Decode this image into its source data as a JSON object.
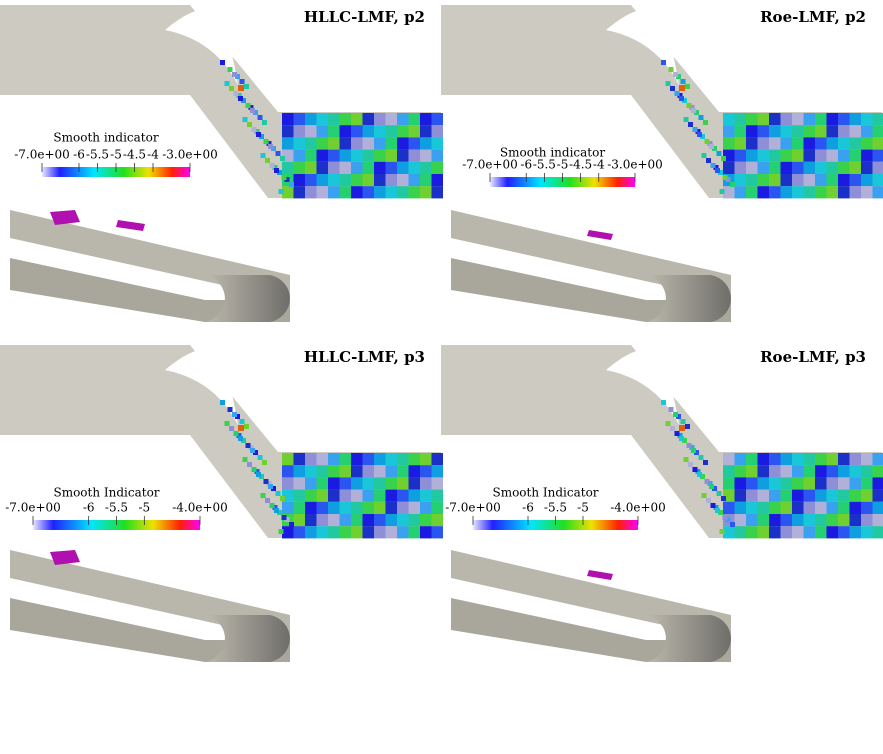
{
  "panels": [
    {
      "title": "HLLC-LMF, p2",
      "colorbar": {
        "label": "Smooth indicator",
        "ticks": [
          {
            "value": -7,
            "label": "-7.0e+00"
          },
          -6,
          -5.5,
          -5,
          -4.5,
          -4,
          {
            "value": -3,
            "label": "-3.0e+00"
          }
        ]
      }
    },
    {
      "title": "Roe-LMF, p2",
      "colorbar": {
        "label": "Smooth indicator",
        "ticks": [
          {
            "value": -7,
            "label": "-7.0e+00"
          },
          -6,
          -5.5,
          -5,
          -4.5,
          -4,
          {
            "value": -3,
            "label": "-3.0e+00"
          }
        ]
      }
    },
    {
      "title": "HLLC-LMF, p3",
      "colorbar": {
        "label": "Smooth Indicator",
        "ticks": [
          {
            "value": -7,
            "label": "-7.0e+00"
          },
          -6,
          -5.5,
          -5,
          {
            "value": -4,
            "label": "-4.0e+00"
          }
        ]
      }
    },
    {
      "title": "Roe-LMF, p3",
      "colorbar": {
        "label": "Smooth Indicator",
        "ticks": [
          {
            "value": -7,
            "label": "-7.0e+00"
          },
          -6,
          -5.5,
          -5,
          {
            "value": -4,
            "label": "-4.0e+00"
          }
        ]
      }
    }
  ]
}
